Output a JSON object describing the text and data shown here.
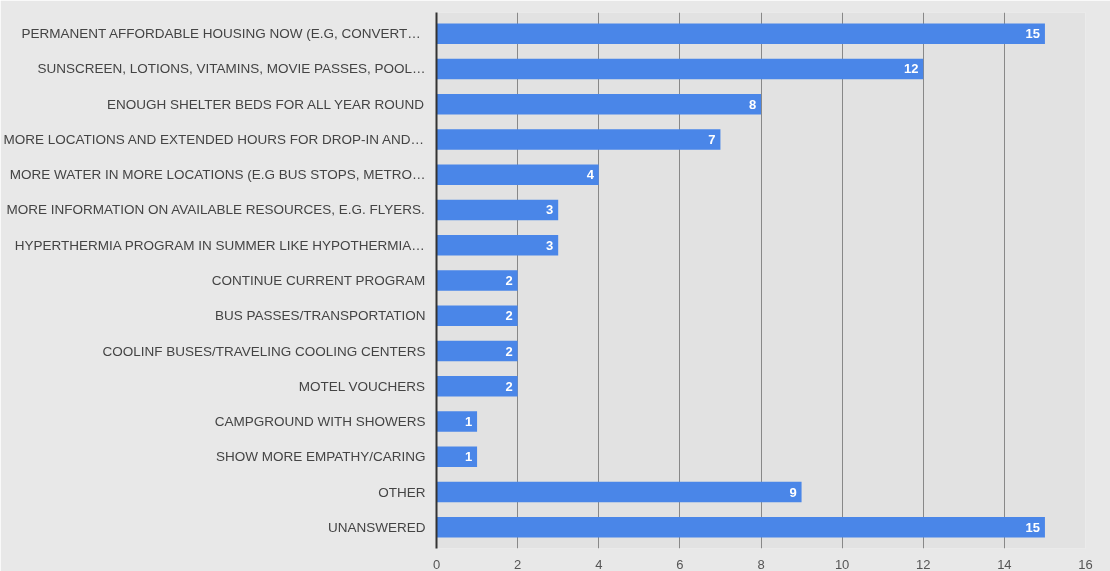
{
  "chart_data": {
    "type": "bar",
    "orientation": "horizontal",
    "categories": [
      "PERMANENT AFFORDABLE HOUSING NOW  (E.G, CONVERT…",
      "SUNSCREEN, LOTIONS, VITAMINS, MOVIE PASSES, POOL…",
      "ENOUGH SHELTER BEDS FOR ALL YEAR ROUND",
      "MORE LOCATIONS AND EXTENDED HOURS FOR DROP-IN AND…",
      "MORE WATER IN MORE LOCATIONS (E.G BUS STOPS, METRO…",
      "MORE INFORMATION ON AVAILABLE RESOURCES, E.G. FLYERS.",
      "HYPERTHERMIA PROGRAM IN SUMMER LIKE HYPOTHERMIA…",
      "CONTINUE CURRENT PROGRAM",
      "BUS PASSES/TRANSPORTATION",
      "COOLINF BUSES/TRAVELING COOLING CENTERS",
      "MOTEL VOUCHERS",
      "CAMPGROUND WITH SHOWERS",
      "SHOW MORE EMPATHY/CARING",
      "OTHER",
      "UNANSWERED"
    ],
    "values": [
      15,
      12,
      8,
      7,
      4,
      3,
      3,
      2,
      2,
      2,
      2,
      1,
      1,
      9,
      15
    ],
    "color": "#4a86e8",
    "xlim": [
      0,
      16
    ],
    "xticks": [
      0,
      2,
      4,
      6,
      8,
      10,
      12,
      14,
      16
    ],
    "grid": "x",
    "data_labels": true
  }
}
